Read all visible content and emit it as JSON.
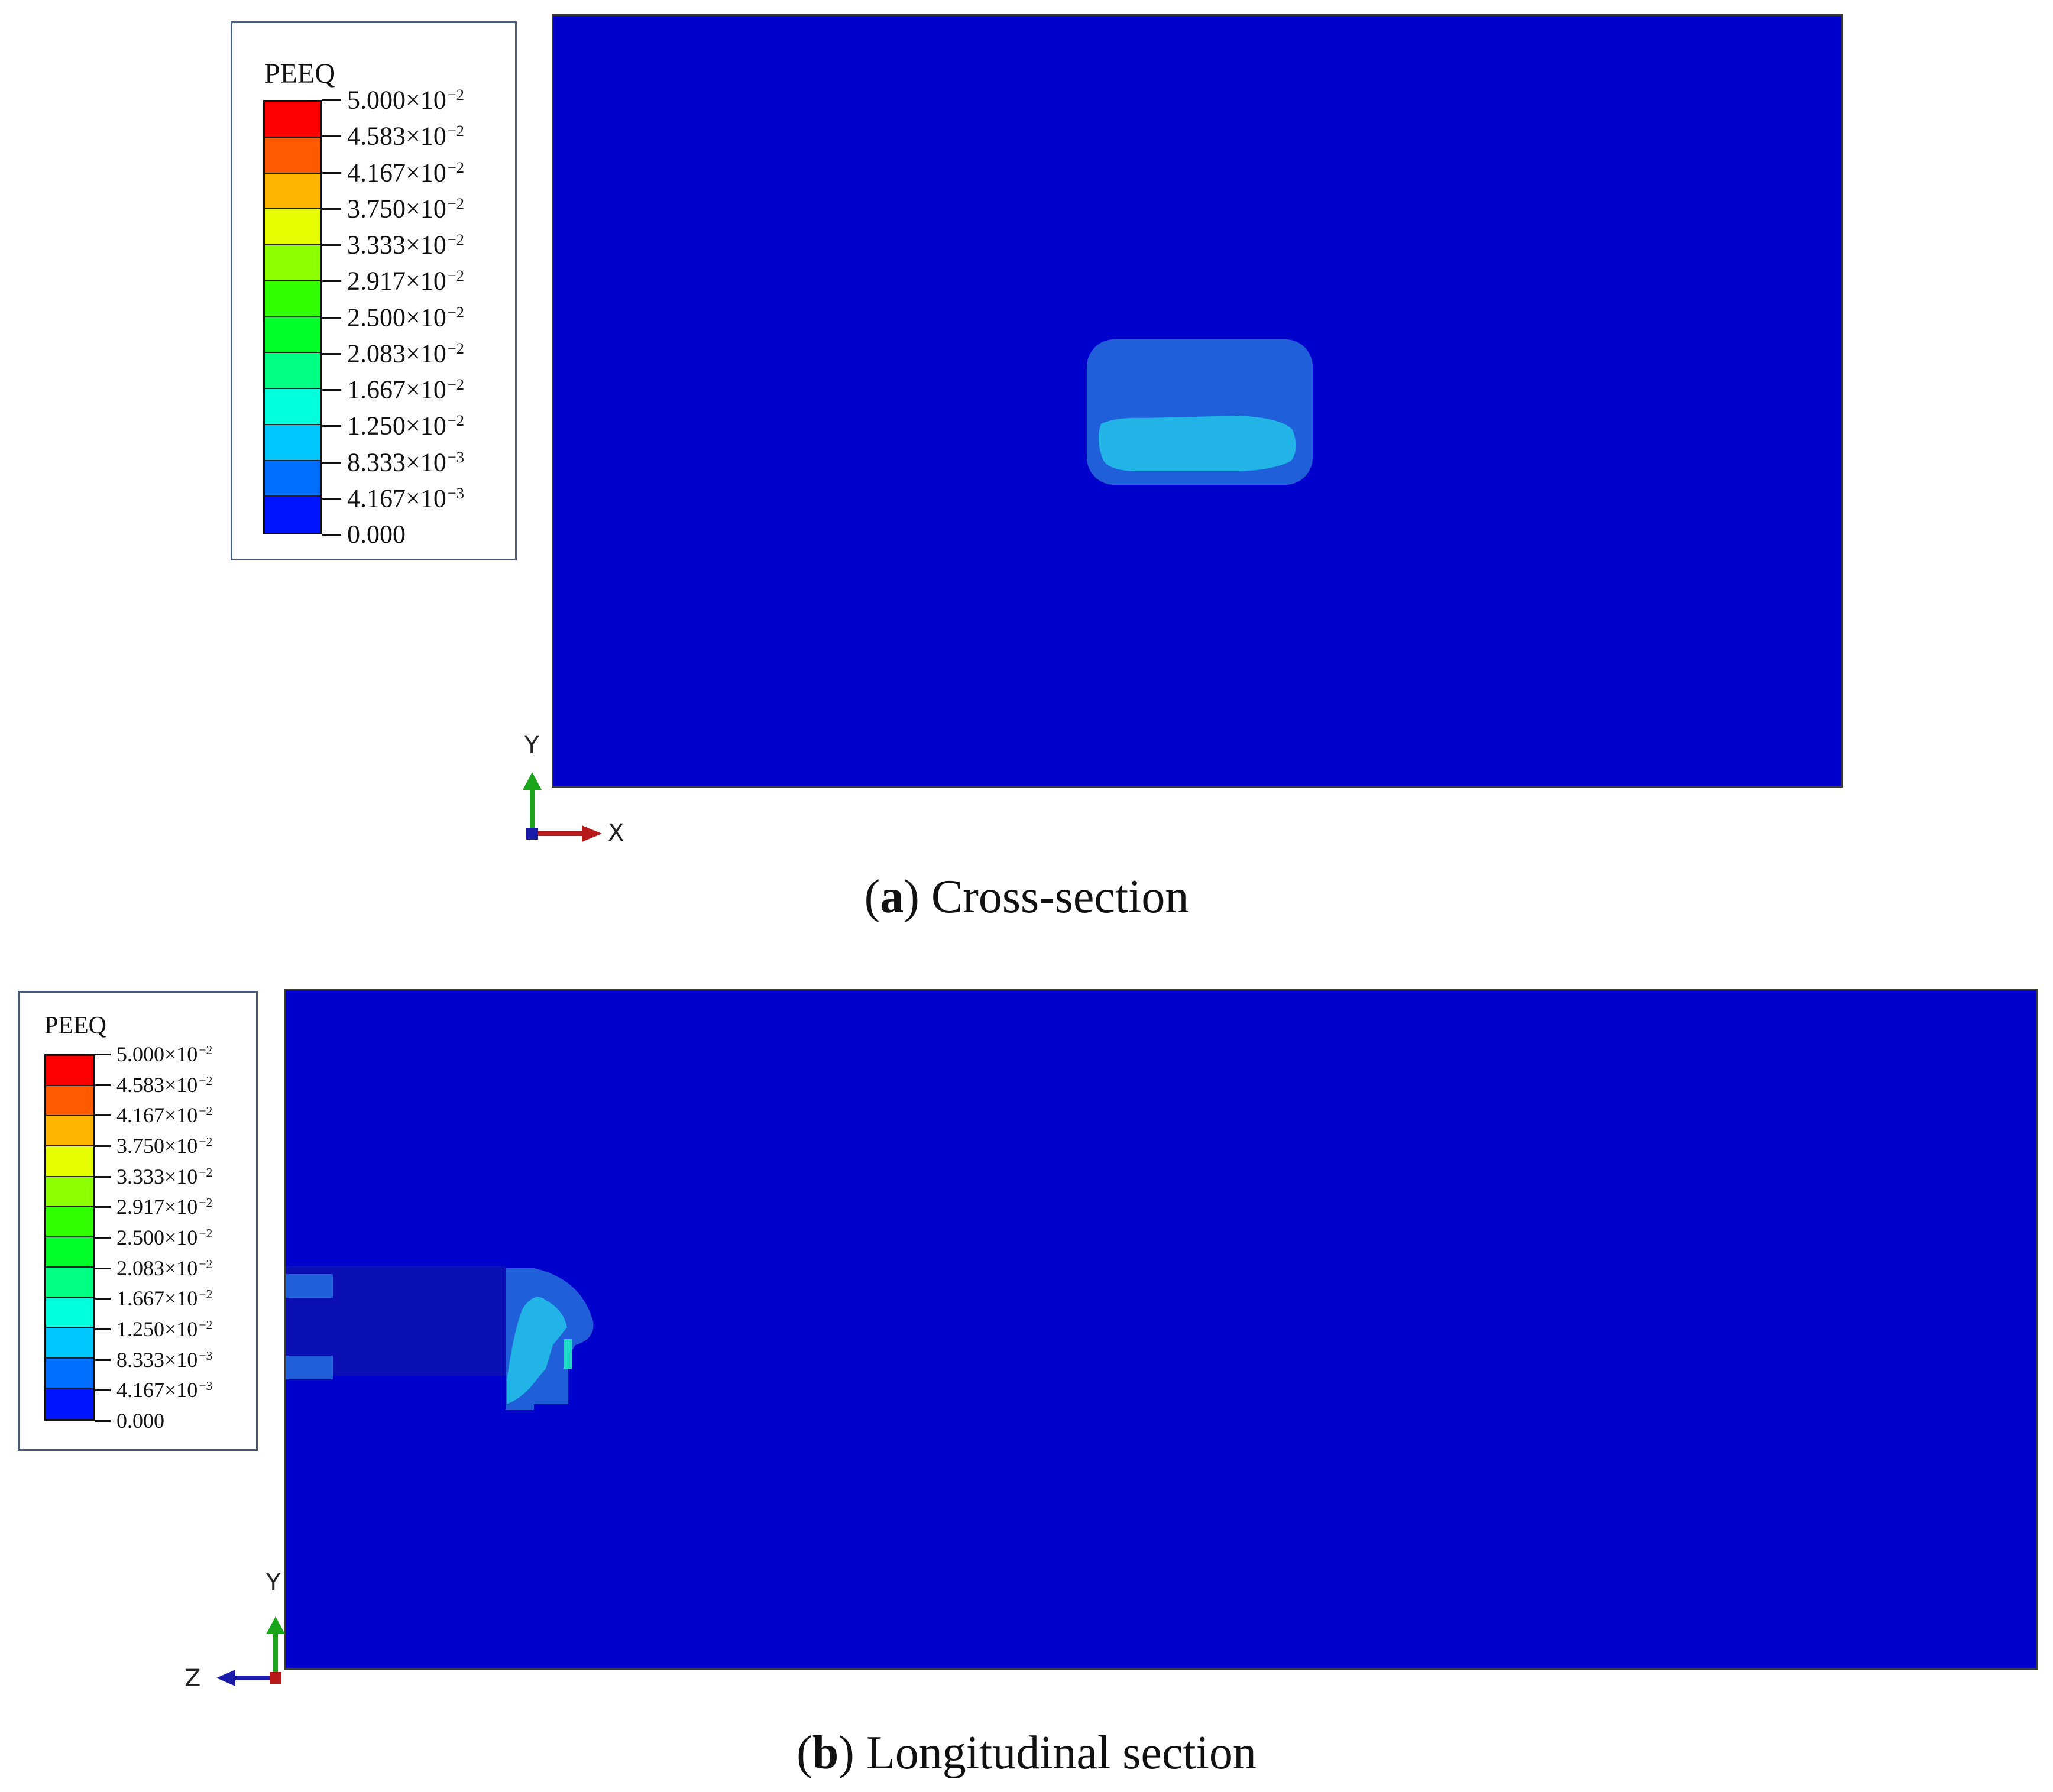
{
  "figures": [
    {
      "id": "a",
      "legend": {
        "title": "PEEQ",
        "labels": [
          {
            "mantissa": "5.000×10",
            "exp": "−2"
          },
          {
            "mantissa": "4.583×10",
            "exp": "−2"
          },
          {
            "mantissa": "4.167×10",
            "exp": "−2"
          },
          {
            "mantissa": "3.750×10",
            "exp": "−2"
          },
          {
            "mantissa": "3.333×10",
            "exp": "−2"
          },
          {
            "mantissa": "2.917×10",
            "exp": "−2"
          },
          {
            "mantissa": "2.500×10",
            "exp": "−2"
          },
          {
            "mantissa": "2.083×10",
            "exp": "−2"
          },
          {
            "mantissa": "1.667×10",
            "exp": "−2"
          },
          {
            "mantissa": "1.250×10",
            "exp": "−2"
          },
          {
            "mantissa": "8.333×10",
            "exp": "−3"
          },
          {
            "mantissa": "4.167×10",
            "exp": "−3"
          },
          {
            "mantissa": "0.000",
            "exp": ""
          }
        ]
      },
      "axes": {
        "vertical": "Y",
        "horizontal": "X"
      },
      "caption": {
        "letter": "a",
        "text": " Cross-section"
      }
    },
    {
      "id": "b",
      "legend": {
        "title": "PEEQ",
        "labels": [
          {
            "mantissa": "5.000×10",
            "exp": "−2"
          },
          {
            "mantissa": "4.583×10",
            "exp": "−2"
          },
          {
            "mantissa": "4.167×10",
            "exp": "−2"
          },
          {
            "mantissa": "3.750×10",
            "exp": "−2"
          },
          {
            "mantissa": "3.333×10",
            "exp": "−2"
          },
          {
            "mantissa": "2.917×10",
            "exp": "−2"
          },
          {
            "mantissa": "2.500×10",
            "exp": "−2"
          },
          {
            "mantissa": "2.083×10",
            "exp": "−2"
          },
          {
            "mantissa": "1.667×10",
            "exp": "−2"
          },
          {
            "mantissa": "1.250×10",
            "exp": "−2"
          },
          {
            "mantissa": "8.333×10",
            "exp": "−3"
          },
          {
            "mantissa": "4.167×10",
            "exp": "−3"
          },
          {
            "mantissa": "0.000",
            "exp": ""
          }
        ]
      },
      "axes": {
        "vertical": "Y",
        "horizontal": "Z"
      },
      "caption": {
        "letter": "b",
        "text": " Longitudinal section"
      }
    }
  ],
  "colors": {
    "contour_bands": [
      "#ff0000",
      "#ff5a00",
      "#ffb400",
      "#e6ff00",
      "#8cff00",
      "#30ff00",
      "#00ff28",
      "#00ff82",
      "#00ffdc",
      "#00c8ff",
      "#006eff",
      "#0014ff"
    ],
    "background_field": "#0000cc",
    "zone_outer": "#1f5fd9",
    "zone_inner": "#22b4e6",
    "zone_core": "#0a10b4",
    "axis_y": "#1aa51a",
    "axis_x": "#b81a1a",
    "axis_z": "#1a1aa8"
  }
}
